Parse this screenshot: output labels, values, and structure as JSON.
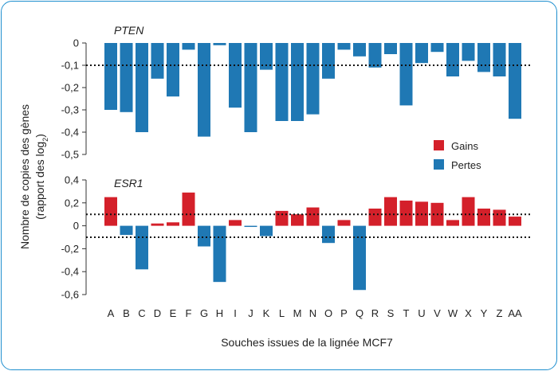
{
  "chart_data": {
    "type": "bar",
    "ylabel_line1": "Nombre de copies des gènes",
    "ylabel_line2": "(rapport des log",
    "ylabel_sub": "2",
    "ylabel_end": ")",
    "xlabel": "Souches issues de la lignée MCF7",
    "categories": [
      "A",
      "B",
      "C",
      "D",
      "E",
      "F",
      "G",
      "H",
      "I",
      "J",
      "K",
      "L",
      "M",
      "N",
      "O",
      "P",
      "Q",
      "R",
      "S",
      "T",
      "U",
      "V",
      "W",
      "X",
      "Y",
      "Z",
      "AA"
    ],
    "legend": [
      {
        "label": "Gains",
        "color": "#d4202a"
      },
      {
        "label": "Pertes",
        "color": "#1f78b4"
      }
    ],
    "panels": [
      {
        "title": "PTEN",
        "ylim": [
          -0.5,
          0
        ],
        "yticks": [
          0,
          -0.1,
          -0.2,
          -0.3,
          -0.4,
          -0.5
        ],
        "ytick_labels": [
          "0",
          "-0,1",
          "-0,2",
          "-0,3",
          "-0,4",
          "-0,5"
        ],
        "threshold_lines": [
          -0.1
        ],
        "values": [
          -0.3,
          -0.31,
          -0.4,
          -0.16,
          -0.24,
          -0.03,
          -0.42,
          -0.01,
          -0.29,
          -0.4,
          -0.12,
          -0.35,
          -0.35,
          -0.32,
          -0.16,
          -0.03,
          -0.06,
          -0.11,
          -0.05,
          -0.28,
          -0.09,
          -0.04,
          -0.15,
          -0.08,
          -0.13,
          -0.15,
          -0.34
        ]
      },
      {
        "title": "ESR1",
        "ylim": [
          -0.6,
          0.4
        ],
        "yticks": [
          0.4,
          0.2,
          0,
          -0.2,
          -0.4,
          -0.6
        ],
        "ytick_labels": [
          "0,4",
          "0,2",
          "0",
          "-0,2",
          "-0,4",
          "-0,6"
        ],
        "threshold_lines": [
          0.1,
          -0.1
        ],
        "values": [
          0.25,
          -0.08,
          -0.38,
          0.02,
          0.03,
          0.29,
          -0.18,
          -0.49,
          0.05,
          -0.01,
          -0.09,
          0.13,
          0.1,
          0.16,
          -0.15,
          0.05,
          -0.56,
          0.15,
          0.25,
          0.22,
          0.21,
          0.2,
          0.05,
          0.25,
          0.15,
          0.14,
          0.08
        ]
      }
    ]
  }
}
